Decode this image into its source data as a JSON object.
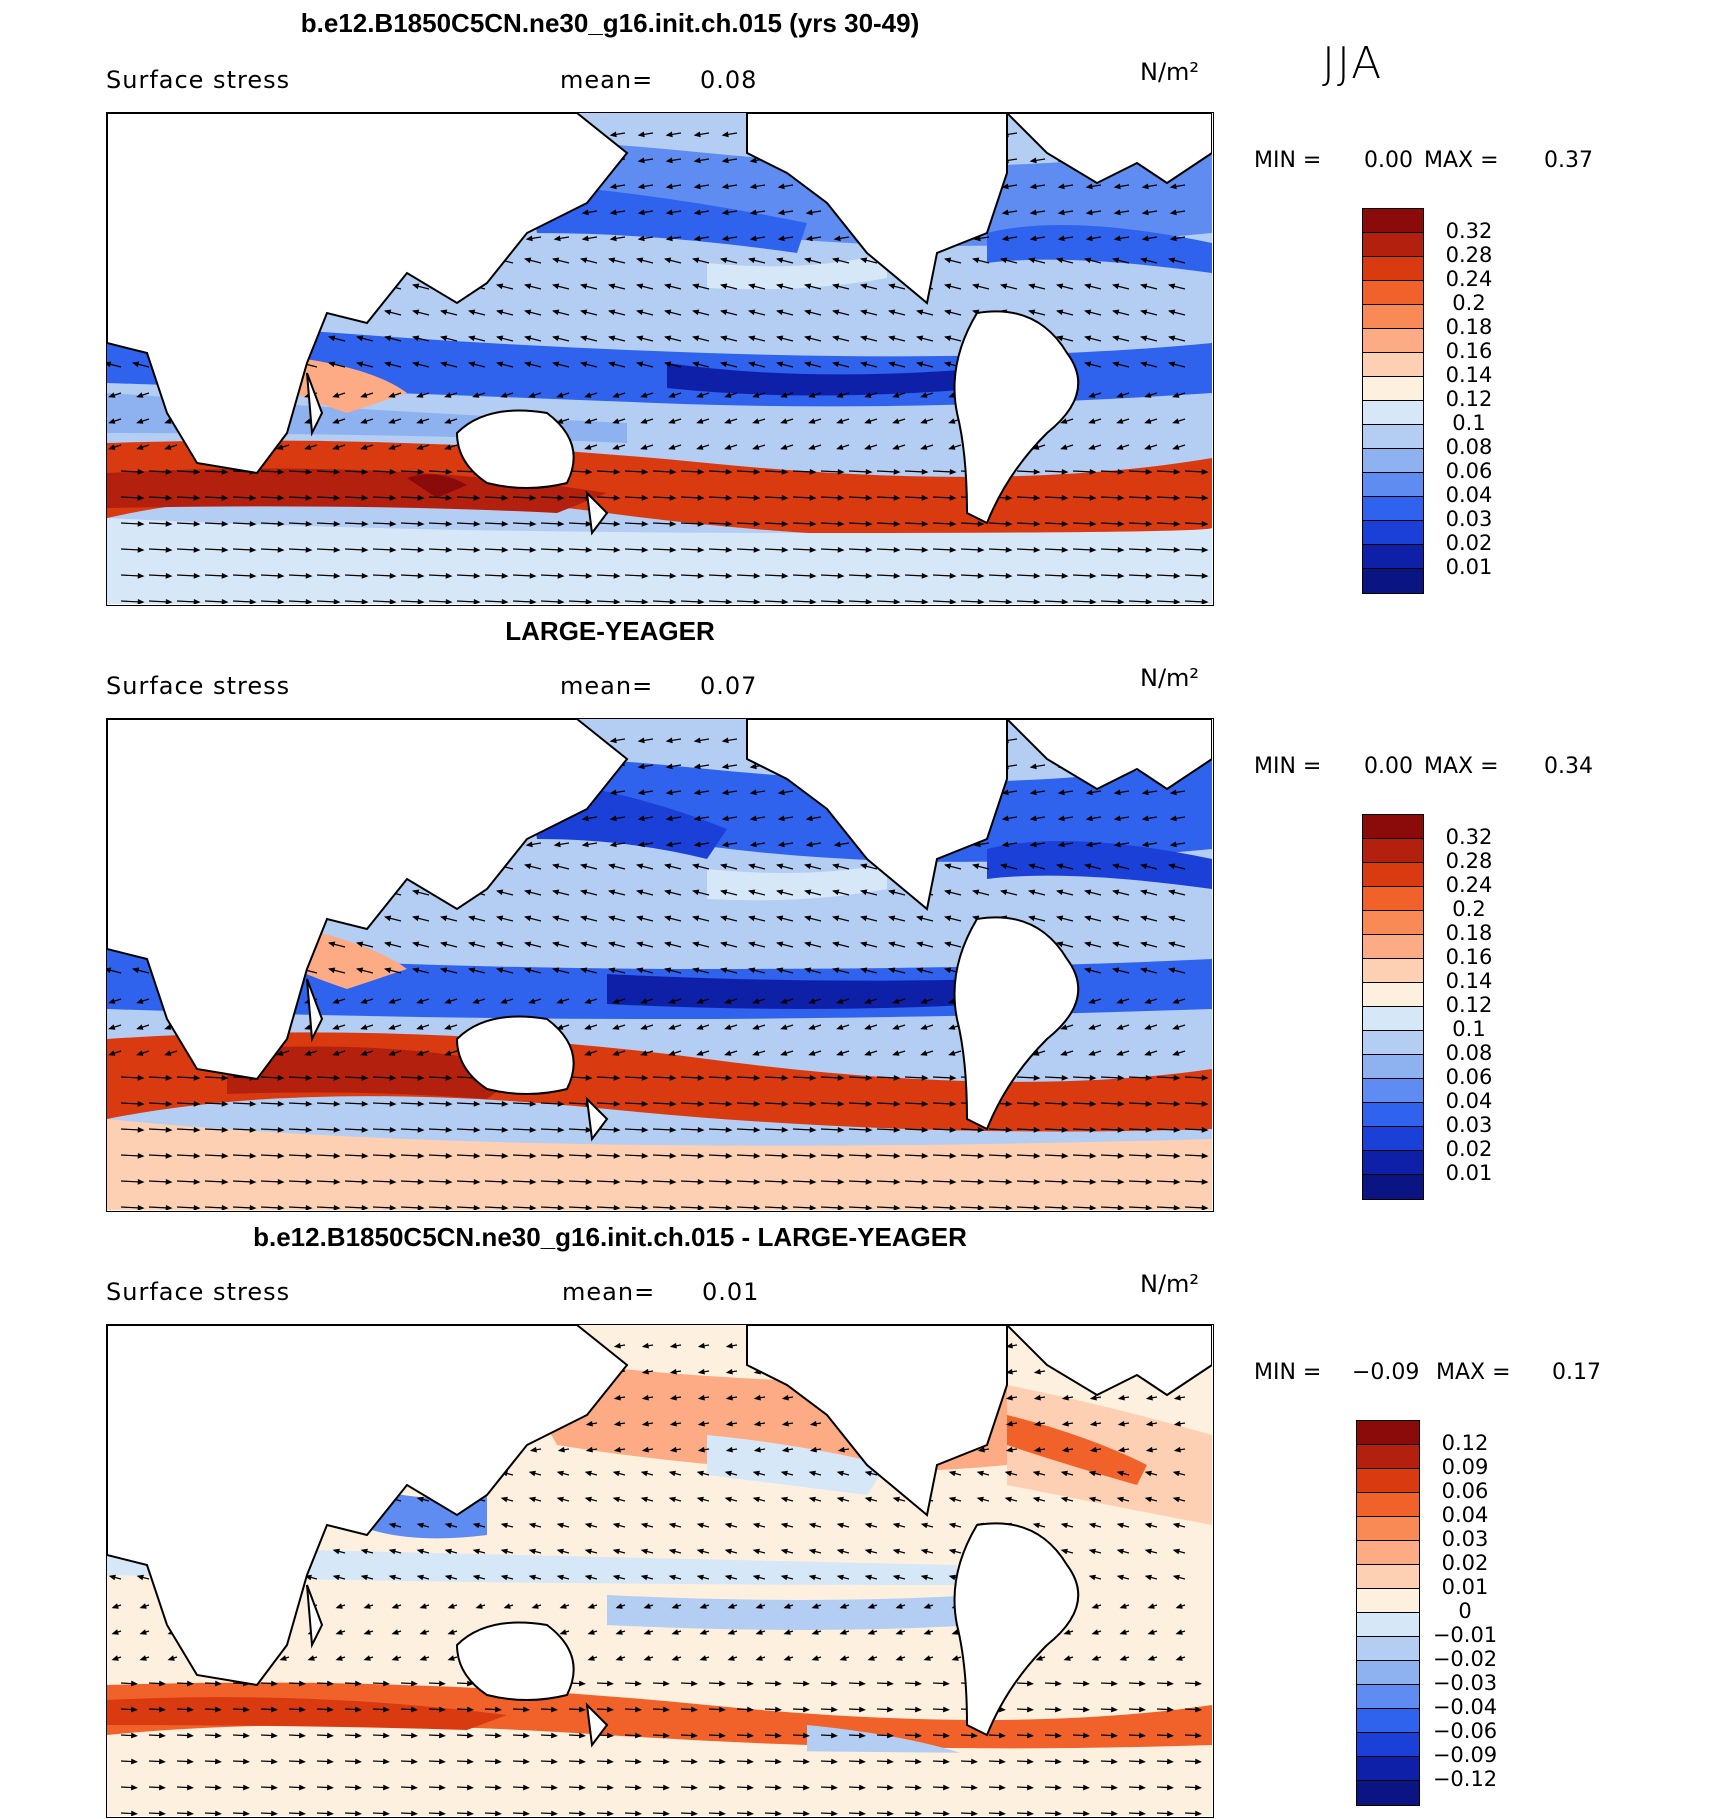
{
  "season": "JJA",
  "panels": [
    {
      "title": "b.e12.B1850C5CN.ne30_g16.init.ch.015 (yrs 30-49)",
      "variable": "Surface stress",
      "mean_label": "mean=",
      "mean_value": "0.08",
      "units": "N/m²",
      "min_label": "MIN =",
      "min_value": "0.00",
      "max_label": "MAX =",
      "max_value": "0.37",
      "colorbar_labels": [
        "0.32",
        "0.28",
        "0.24",
        "0.2",
        "0.18",
        "0.16",
        "0.14",
        "0.12",
        "0.1",
        "0.08",
        "0.06",
        "0.04",
        "0.03",
        "0.02",
        "0.01"
      ]
    },
    {
      "title": "LARGE-YEAGER",
      "variable": "Surface stress",
      "mean_label": "mean=",
      "mean_value": "0.07",
      "units": "N/m²",
      "min_label": "MIN =",
      "min_value": "0.00",
      "max_label": "MAX =",
      "max_value": "0.34",
      "colorbar_labels": [
        "0.32",
        "0.28",
        "0.24",
        "0.2",
        "0.18",
        "0.16",
        "0.14",
        "0.12",
        "0.1",
        "0.08",
        "0.06",
        "0.04",
        "0.03",
        "0.02",
        "0.01"
      ]
    },
    {
      "title": "b.e12.B1850C5CN.ne30_g16.init.ch.015 - LARGE-YEAGER",
      "variable": "Surface stress",
      "mean_label": "mean=",
      "mean_value": "0.01",
      "units": "N/m²",
      "min_label": "MIN =",
      "min_value": "−0.09",
      "max_label": "MAX =",
      "max_value": "0.17",
      "colorbar_labels": [
        "0.12",
        "0.09",
        "0.06",
        "0.04",
        "0.03",
        "0.02",
        "0.01",
        "0",
        "−0.01",
        "−0.02",
        "−0.03",
        "−0.04",
        "−0.06",
        "−0.09",
        "−0.12"
      ]
    }
  ],
  "colors": {
    "colorbar_abs": [
      "#8b0b0b",
      "#b3200e",
      "#d93a10",
      "#f0622a",
      "#fa8a55",
      "#fcab84",
      "#fdd0b3",
      "#fdf0df",
      "#d6e7f8",
      "#b3cdf3",
      "#8db2ef",
      "#5e8cf0",
      "#2f63ee",
      "#1a40d8",
      "#0f20a8",
      "#0a1482"
    ],
    "colorbar_diff": [
      "#8b0b0b",
      "#b3200e",
      "#d93a10",
      "#f0622a",
      "#fa8a55",
      "#fcab84",
      "#fdd0b3",
      "#fdf0df",
      "#d6e7f8",
      "#b3cdf3",
      "#8db2ef",
      "#5e8cf0",
      "#2f63ee",
      "#1a40d8",
      "#0f20a8",
      "#0a1482"
    ],
    "land": "#ffffff",
    "coast": "#000000"
  }
}
